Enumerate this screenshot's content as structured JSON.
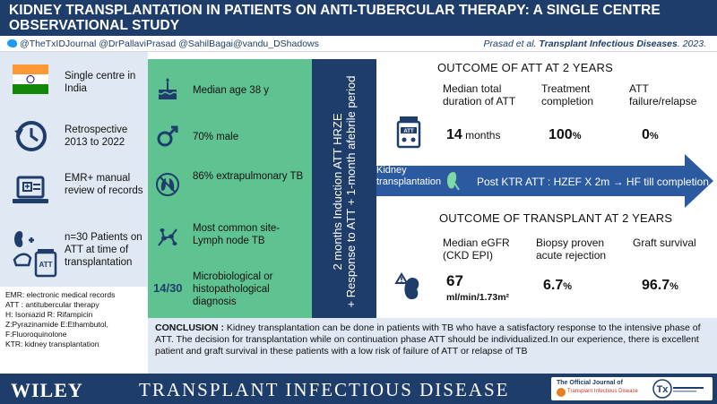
{
  "header": {
    "title": "KIDNEY TRANSPLANTATION IN PATIENTS ON ANTI-TUBERCULAR THERAPY: A SINGLE CENTRE OBSERVATIONAL STUDY"
  },
  "social": {
    "handles": "@TheTxIDJournal  @DrPallaviPrasad @SahilBagai@vandu_DShadows",
    "citation_authors": "Prasad et al.",
    "citation_journal": "Transplant Infectious Diseases",
    "citation_year": ". 2023."
  },
  "left": {
    "items": [
      {
        "text": "Single centre in India",
        "icon": "india-flag-icon"
      },
      {
        "text": "Retrospective 2013 to 2022",
        "icon": "history-clock-icon"
      },
      {
        "text": "EMR+ manual review of records",
        "icon": "laptop-records-icon"
      },
      {
        "text": "n=30 Patients on ATT at time of transplantation",
        "icon": "kidney-pill-bottle-icon"
      }
    ],
    "abbreviations": [
      "EMR: electronic medical records",
      "ATT : antitubercular therapy",
      "H: Isoniazid R: Rifampicin",
      "Z:Pyrazinamide E:Ethambutol,",
      "F:Fluoroquinolone",
      "KTR: kidney transplantation"
    ]
  },
  "middle": {
    "items": [
      {
        "text": "Median age 38 y",
        "icon": "birthday-cake-icon"
      },
      {
        "text": "70% male",
        "icon": "male-symbol-icon"
      },
      {
        "text": "86% extrapulmonary TB",
        "icon": "crossed-lungs-icon"
      },
      {
        "text": "Most common site- Lymph node TB",
        "icon": "lymph-node-icon"
      }
    ],
    "fraction": "14/30",
    "fraction_text": "Microbiological or histopathological diagnosis"
  },
  "vertical_band": {
    "line1": "2 months Induction ATT HRZE",
    "line2": "+ Response to ATT + 1-month afebrile period"
  },
  "outcome_att": {
    "heading": "OUTCOME OF ATT  AT 2 YEARS",
    "columns": [
      {
        "label": "Median total duration of ATT",
        "value": "14",
        "unit": " months"
      },
      {
        "label": "Treatment completion",
        "value": "100",
        "unit": "%"
      },
      {
        "label": "ATT failure/relapse",
        "value": "0",
        "unit": "%"
      }
    ],
    "icon_label": "ATT"
  },
  "arrow": {
    "left_label": "Kidney transplantation",
    "regimen": "Post KTR ATT : HZEF X 2m → HF till completion"
  },
  "outcome_tx": {
    "heading": "OUTCOME OF TRANSPLANT AT 2 YEARS",
    "columns": [
      {
        "label": "Median eGFR (CKD EPI)",
        "value": "67",
        "unit": "ml/min/1.73m²"
      },
      {
        "label": "Biopsy proven acute rejection",
        "value": "6.7",
        "unit": "%"
      },
      {
        "label": "Graft survival",
        "value": "96.7",
        "unit": "%"
      }
    ]
  },
  "conclusion": {
    "label": "CONCLUSION :",
    "text": " Kidney transplantation can be done in patients with TB who have a satisfactory response to the intensive phase of ATT. The decision for transplantation while on continuation phase ATT should be individualized.In our experience, there is excellent patient and graft survival in these patients with a low risk of failure of ATT or relapse of TB"
  },
  "footer": {
    "publisher": "WILEY",
    "journal": "TRANSPLANT INFECTIOUS DISEASE",
    "official": "The Official Journal of",
    "society": "Transplant Infectious Disease",
    "tx_logo": "Tx"
  },
  "colors": {
    "navy": "#1f3d6b",
    "green": "#5fc391",
    "light_blue": "#dfe8f3",
    "arrow": "#2c5aa0"
  }
}
